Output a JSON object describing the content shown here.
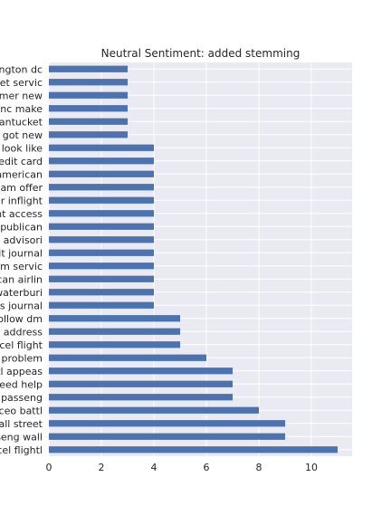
{
  "chart_data": {
    "type": "bar",
    "orientation": "horizontal",
    "title": "Neutral Sentiment: added stemming",
    "xlabel": "",
    "ylabel": "",
    "xlim": [
      0,
      11.55
    ],
    "xticks": [
      0,
      2,
      4,
      6,
      8,
      10
    ],
    "grid": true,
    "bar_color": "#4c72b0",
    "background_color": "#eaeaf2",
    "categories": [
      "cancel flightl",
      "passeng wall",
      "wall street",
      "ceo battl",
      "passeng",
      "need help",
      "battl appeas",
      "problem",
      "cancel flight",
      "address",
      "follow dm",
      "business journal",
      "waterburi",
      "american airlin",
      "custom servic",
      "digit journal",
      "travel advisori",
      "republican",
      "flight access",
      "cust inflight",
      "team offer",
      "american",
      "credit card",
      "look like",
      "got new",
      "nantucket",
      "anc make",
      "customer new",
      "ticket servic",
      "washington dc"
    ],
    "category_labels_visible": [
      "ncel flightl",
      "seng wall",
      "all street",
      "ceo battl",
      "passeng",
      "eed help",
      "tl appeas",
      "problem",
      "ncel flight",
      "address",
      "ollow dm",
      "ss journal",
      "waterburi",
      "can airlin",
      "om servic",
      "git journal",
      "l advisori",
      "epublican",
      "nt access",
      "er inflight",
      "eam offer",
      "american",
      "redit card",
      "look like",
      "got new",
      "nantucket",
      "anc make",
      "mer new",
      "ket servic",
      "ngton dc"
    ],
    "values": [
      11,
      9,
      9,
      8,
      7,
      7,
      7,
      6,
      5,
      5,
      5,
      4,
      4,
      4,
      4,
      4,
      4,
      4,
      4,
      4,
      4,
      4,
      4,
      4,
      3,
      3,
      3,
      3,
      3,
      3
    ]
  }
}
